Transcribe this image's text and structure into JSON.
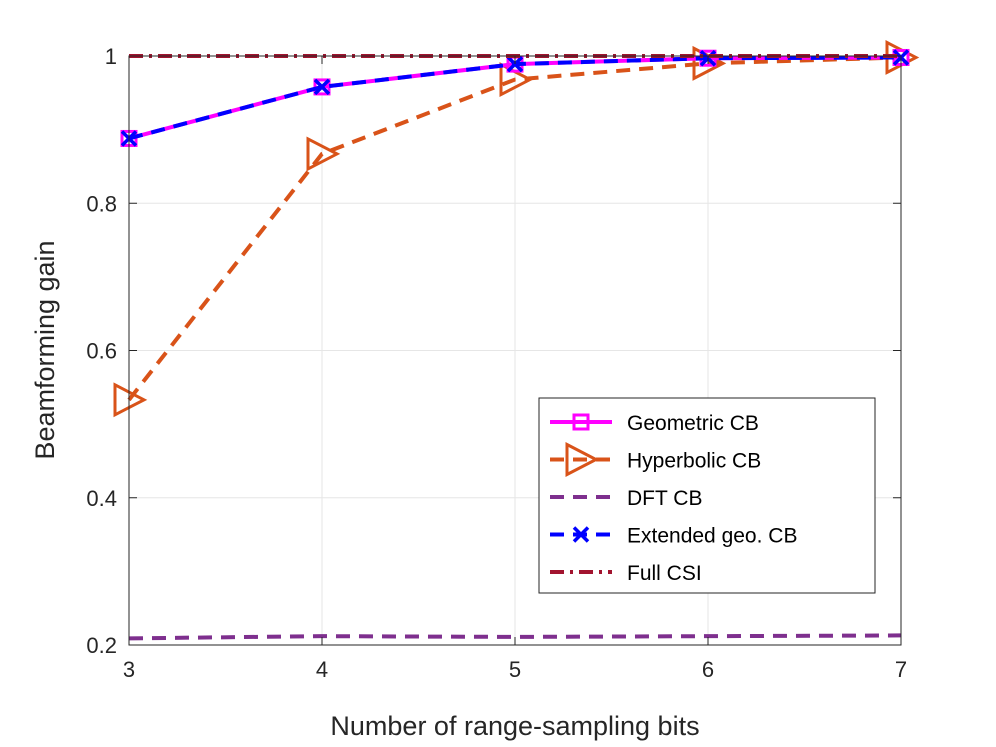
{
  "chart_data": {
    "type": "line",
    "title": "",
    "xlabel": "Number of range-sampling bits",
    "ylabel": "Beamforming gain",
    "x": [
      3,
      4,
      5,
      6,
      7
    ],
    "xlim": [
      3,
      7
    ],
    "ylim": [
      0.2,
      1.0
    ],
    "xticks": [
      "3",
      "4",
      "5",
      "6",
      "7"
    ],
    "yticks": [
      "0.2",
      "0.4",
      "0.6",
      "0.8",
      "1"
    ],
    "grid": true,
    "legend_position": "bottom-right",
    "series": [
      {
        "name": "Geometric CB",
        "values": [
          0.888,
          0.958,
          0.989,
          0.997,
          0.998
        ],
        "color": "#ff00ff",
        "style": "solid",
        "marker": "square"
      },
      {
        "name": "Hyperbolic CB",
        "values": [
          0.533,
          0.867,
          0.968,
          0.99,
          0.998
        ],
        "color": "#d95319",
        "style": "dashed",
        "marker": "triangle-right"
      },
      {
        "name": "DFT CB",
        "values": [
          0.209,
          0.212,
          0.211,
          0.212,
          0.213
        ],
        "color": "#7e2f8e",
        "style": "dashed",
        "marker": "none"
      },
      {
        "name": "Extended geo. CB",
        "values": [
          0.888,
          0.958,
          0.989,
          0.997,
          0.998
        ],
        "color": "#0000ff",
        "style": "dashed",
        "marker": "x"
      },
      {
        "name": "Full CSI",
        "values": [
          1.0,
          1.0,
          1.0,
          1.0,
          1.0
        ],
        "color": "#a2142f",
        "style": "dashdot",
        "marker": "none"
      }
    ]
  }
}
